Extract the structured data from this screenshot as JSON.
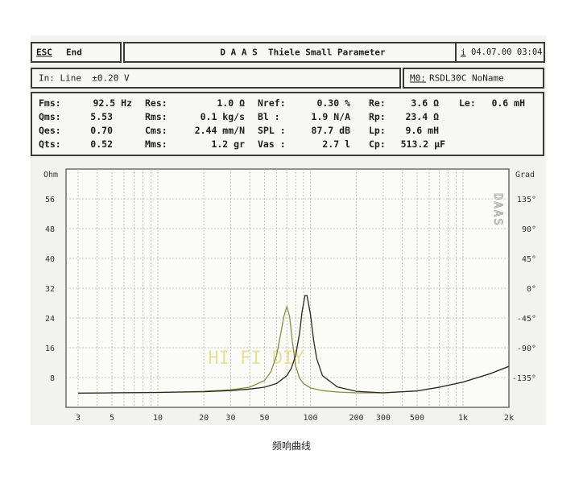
{
  "header": {
    "esc_label": "ESC",
    "end_label": "End",
    "title": "D A A S  Thiele Small Parameter",
    "info_icon": "i",
    "datetime": "04.07.00 03:04"
  },
  "subheader": {
    "input": "In: Line  ±0.20 V",
    "model_key": "M0:",
    "model_value": "RSDL30C NoName"
  },
  "params": [
    [
      {
        "label": "Fms:",
        "value": "92.5 Hz"
      },
      {
        "label": "Res:",
        "value": "1.0 Ω"
      },
      {
        "label": "Nref:",
        "value": "0.30 %"
      },
      {
        "label": "Re:",
        "value": "3.6 Ω"
      },
      {
        "label": "Le:",
        "value": "0.6 mH"
      }
    ],
    [
      {
        "label": "Qms:",
        "value": "5.53"
      },
      {
        "label": "Rms:",
        "value": "0.1 kg/s"
      },
      {
        "label": "Bl :",
        "value": "1.9 N/A"
      },
      {
        "label": "Rp:",
        "value": "23.4 Ω"
      }
    ],
    [
      {
        "label": "Qes:",
        "value": "0.70"
      },
      {
        "label": "Cms:",
        "value": "2.44 mm/N"
      },
      {
        "label": "SPL :",
        "value": "87.7 dB"
      },
      {
        "label": "Lp:",
        "value": "9.6 mH"
      }
    ],
    [
      {
        "label": "Qts:",
        "value": "0.52"
      },
      {
        "label": "Mms:",
        "value": "1.2 gr"
      },
      {
        "label": "Vas :",
        "value": "2.7 l"
      },
      {
        "label": "Cp:",
        "value": "513.2 μF"
      }
    ]
  ],
  "chart_data": {
    "type": "line",
    "xscale": "log",
    "xlim": [
      2.5,
      2000
    ],
    "ylim": [
      0,
      64
    ],
    "y2lim": [
      -180,
      180
    ],
    "grid": true,
    "left_unit": "Ohm",
    "right_unit": "Grad",
    "watermark": "DAAS",
    "overlay_text": "HI FI DIY",
    "x_ticks": [
      {
        "label": "3",
        "value": 3
      },
      {
        "label": "5",
        "value": 5
      },
      {
        "label": "10",
        "value": 10
      },
      {
        "label": "20",
        "value": 20
      },
      {
        "label": "30",
        "value": 30
      },
      {
        "label": "50",
        "value": 50
      },
      {
        "label": "100",
        "value": 100
      },
      {
        "label": "200",
        "value": 200
      },
      {
        "label": "300",
        "value": 300
      },
      {
        "label": "500",
        "value": 500
      },
      {
        "label": "1k",
        "value": 1000
      },
      {
        "label": "2k",
        "value": 2000
      }
    ],
    "y_ticks": [
      8,
      16,
      24,
      32,
      40,
      48,
      56
    ],
    "y2_ticks": [
      {
        "label": "135°",
        "value": 135
      },
      {
        "label": "90°",
        "value": 90
      },
      {
        "label": "45°",
        "value": 45
      },
      {
        "label": "0°",
        "value": 0
      },
      {
        "label": "-45°",
        "value": -45
      },
      {
        "label": "-90°",
        "value": -90
      },
      {
        "label": "-135°",
        "value": -135
      }
    ],
    "series": [
      {
        "color": "#8c8c44",
        "x": [
          3,
          5,
          10,
          20,
          30,
          40,
          50,
          55,
          60,
          64,
          67,
          70,
          73,
          76,
          80,
          85,
          90,
          100,
          120,
          150,
          200,
          300,
          500,
          700,
          1000,
          1500,
          2000
        ],
        "y": [
          3.8,
          3.9,
          4.0,
          4.3,
          4.7,
          5.4,
          7.2,
          9.5,
          14.0,
          20.0,
          24.5,
          27.0,
          24.5,
          18.0,
          11.0,
          7.8,
          6.4,
          5.2,
          4.5,
          4.1,
          3.9,
          3.9,
          4.4,
          5.4,
          6.8,
          9.0,
          11.0
        ]
      },
      {
        "color": "#2a2a1c",
        "x": [
          3,
          5,
          10,
          20,
          30,
          40,
          50,
          60,
          70,
          75,
          80,
          85,
          88,
          92,
          95,
          100,
          105,
          110,
          120,
          150,
          200,
          300,
          500,
          700,
          1000,
          1500,
          2000
        ],
        "y": [
          3.8,
          3.9,
          4.0,
          4.2,
          4.5,
          4.9,
          5.4,
          6.4,
          8.5,
          10.5,
          14.0,
          20.0,
          25.5,
          30.0,
          30.0,
          25.0,
          18.0,
          13.0,
          8.5,
          5.5,
          4.3,
          3.9,
          4.4,
          5.4,
          6.8,
          9.0,
          11.0
        ]
      }
    ]
  },
  "caption": "频响曲线"
}
